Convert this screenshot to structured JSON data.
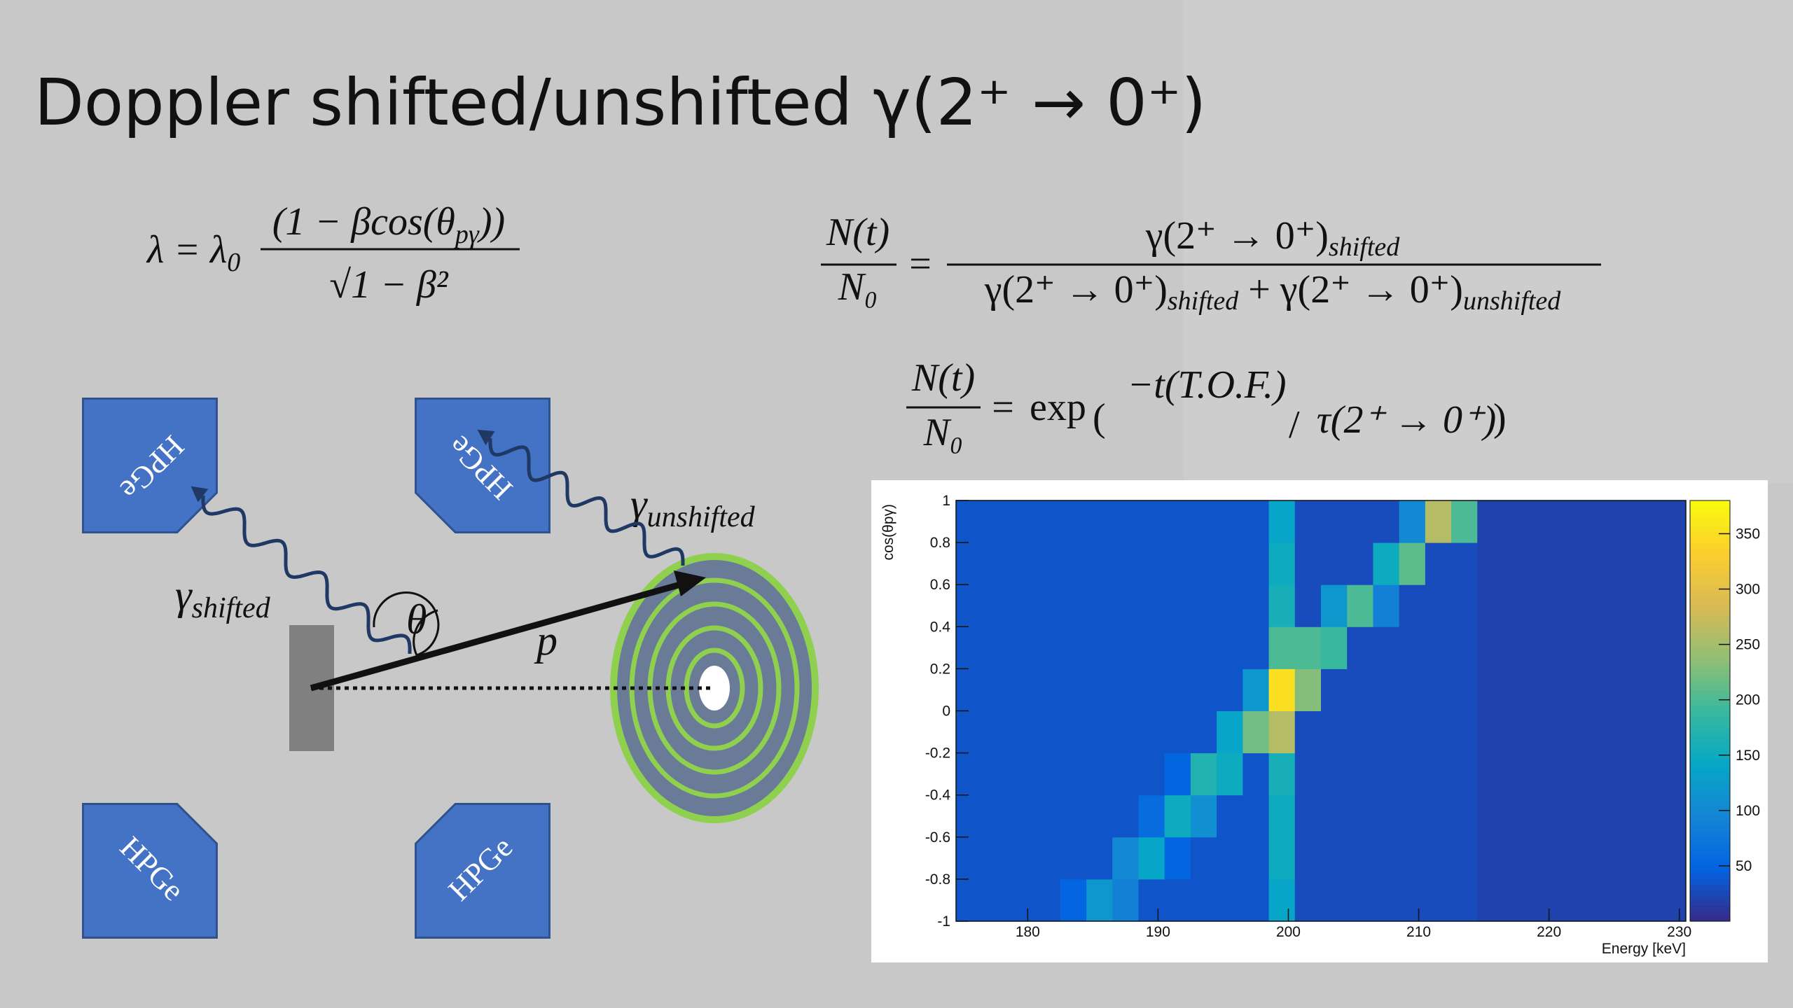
{
  "title": "Doppler shifted/unshifted γ(2⁺ → 0⁺)",
  "equations": {
    "eq1": {
      "lhs": "λ = λ",
      "lhs_sub": "0",
      "num": "(1 − βcos(θ",
      "num_sub": "pγ",
      "num_end": "))",
      "den": "√1 − β²"
    },
    "eq2": {
      "lhs_num": "N(t)",
      "lhs_den": "N₀",
      "equals": "=",
      "num_term": "γ(2⁺ → 0⁺)",
      "num_sub": "shifted",
      "den_term1": "γ(2⁺ → 0⁺)",
      "den_sub1": "shifted",
      "plus": "+",
      "den_term2": "γ(2⁺ → 0⁺)",
      "den_sub2": "unshifted"
    },
    "eq3": {
      "lhs_num": "N(t)",
      "lhs_den": "N₀",
      "equals": "=",
      "func": "exp",
      "open": "(",
      "arg_num": "−t(T.O.F.)",
      "slash": "/",
      "arg_den": "τ(2⁺ → 0⁺)",
      "close": ")"
    }
  },
  "diagram": {
    "detectors": [
      "HPGe",
      "HPGe",
      "HPGe",
      "HPGe"
    ],
    "gamma_shifted": {
      "symbol": "γ",
      "sub": "shifted"
    },
    "gamma_unshifted": {
      "symbol": "γ",
      "sub": "unshifted"
    },
    "angle": "θ",
    "momentum": "p"
  },
  "chart_data": {
    "type": "heatmap",
    "xlabel": "Energy [keV]",
    "ylabel": "cos(θpγ)",
    "xlim": [
      174.5,
      230.5
    ],
    "ylim": [
      -1,
      1
    ],
    "xticks": [
      180,
      190,
      200,
      210,
      220,
      230
    ],
    "yticks": [
      -1,
      -0.8,
      -0.6,
      -0.4,
      -0.2,
      0,
      0.2,
      0.4,
      0.6,
      0.8,
      1
    ],
    "xbins": [
      174.5,
      176.5,
      178.5,
      180.5,
      182.5,
      184.5,
      186.5,
      188.5,
      190.5,
      192.5,
      194.5,
      196.5,
      198.5,
      200.5,
      202.5,
      204.5,
      206.5,
      208.5,
      210.5,
      212.5,
      214.5,
      216.5,
      218.5,
      220.5,
      222.5,
      224.5,
      226.5,
      228.5,
      230.5
    ],
    "ybins": [
      -1,
      -0.8,
      -0.6,
      -0.4,
      -0.2,
      0,
      0.2,
      0.4,
      0.6,
      0.8,
      1
    ],
    "values": [
      [
        35,
        35,
        35,
        35,
        50,
        120,
        90,
        35,
        35,
        35,
        35,
        35,
        140,
        28,
        28,
        28,
        28,
        28,
        28,
        28,
        20,
        20,
        20,
        20,
        20,
        20,
        20,
        20
      ],
      [
        35,
        35,
        35,
        35,
        35,
        35,
        100,
        140,
        50,
        35,
        35,
        35,
        150,
        28,
        28,
        28,
        28,
        28,
        28,
        28,
        20,
        20,
        20,
        20,
        20,
        20,
        20,
        20
      ],
      [
        35,
        35,
        35,
        35,
        35,
        35,
        35,
        60,
        150,
        110,
        35,
        35,
        150,
        28,
        28,
        28,
        28,
        28,
        28,
        28,
        20,
        20,
        20,
        20,
        20,
        20,
        20,
        20
      ],
      [
        35,
        35,
        35,
        35,
        35,
        35,
        35,
        35,
        50,
        170,
        150,
        35,
        160,
        28,
        28,
        28,
        28,
        28,
        28,
        28,
        20,
        20,
        20,
        20,
        20,
        20,
        20,
        20
      ],
      [
        35,
        35,
        35,
        35,
        35,
        35,
        35,
        35,
        35,
        35,
        140,
        220,
        260,
        28,
        28,
        28,
        28,
        28,
        28,
        28,
        20,
        20,
        20,
        20,
        20,
        20,
        20,
        20
      ],
      [
        35,
        35,
        35,
        35,
        35,
        35,
        35,
        35,
        35,
        35,
        35,
        120,
        350,
        230,
        28,
        28,
        28,
        28,
        28,
        28,
        20,
        20,
        20,
        20,
        20,
        20,
        20,
        20
      ],
      [
        35,
        35,
        35,
        35,
        35,
        35,
        35,
        35,
        35,
        35,
        35,
        35,
        200,
        200,
        190,
        28,
        28,
        28,
        28,
        28,
        20,
        20,
        20,
        20,
        20,
        20,
        20,
        20
      ],
      [
        35,
        35,
        35,
        35,
        35,
        35,
        35,
        35,
        35,
        35,
        35,
        35,
        160,
        28,
        120,
        200,
        90,
        28,
        28,
        28,
        20,
        20,
        20,
        20,
        20,
        20,
        20,
        20
      ],
      [
        35,
        35,
        35,
        35,
        35,
        35,
        35,
        35,
        35,
        35,
        35,
        35,
        150,
        28,
        28,
        28,
        150,
        210,
        28,
        28,
        20,
        20,
        20,
        20,
        20,
        20,
        20,
        20
      ],
      [
        35,
        35,
        35,
        35,
        35,
        35,
        35,
        35,
        35,
        35,
        35,
        35,
        140,
        28,
        28,
        28,
        28,
        100,
        260,
        200,
        20,
        20,
        20,
        20,
        20,
        20,
        20,
        20
      ]
    ],
    "zlim": [
      0,
      380
    ],
    "zticks": [
      50,
      100,
      150,
      200,
      250,
      300,
      350
    ],
    "colormap": [
      "#352a87",
      "#0363e1",
      "#1485d4",
      "#06a7c6",
      "#38b99e",
      "#92bf73",
      "#d9ba56",
      "#fcce2e",
      "#f9fb0e"
    ]
  }
}
